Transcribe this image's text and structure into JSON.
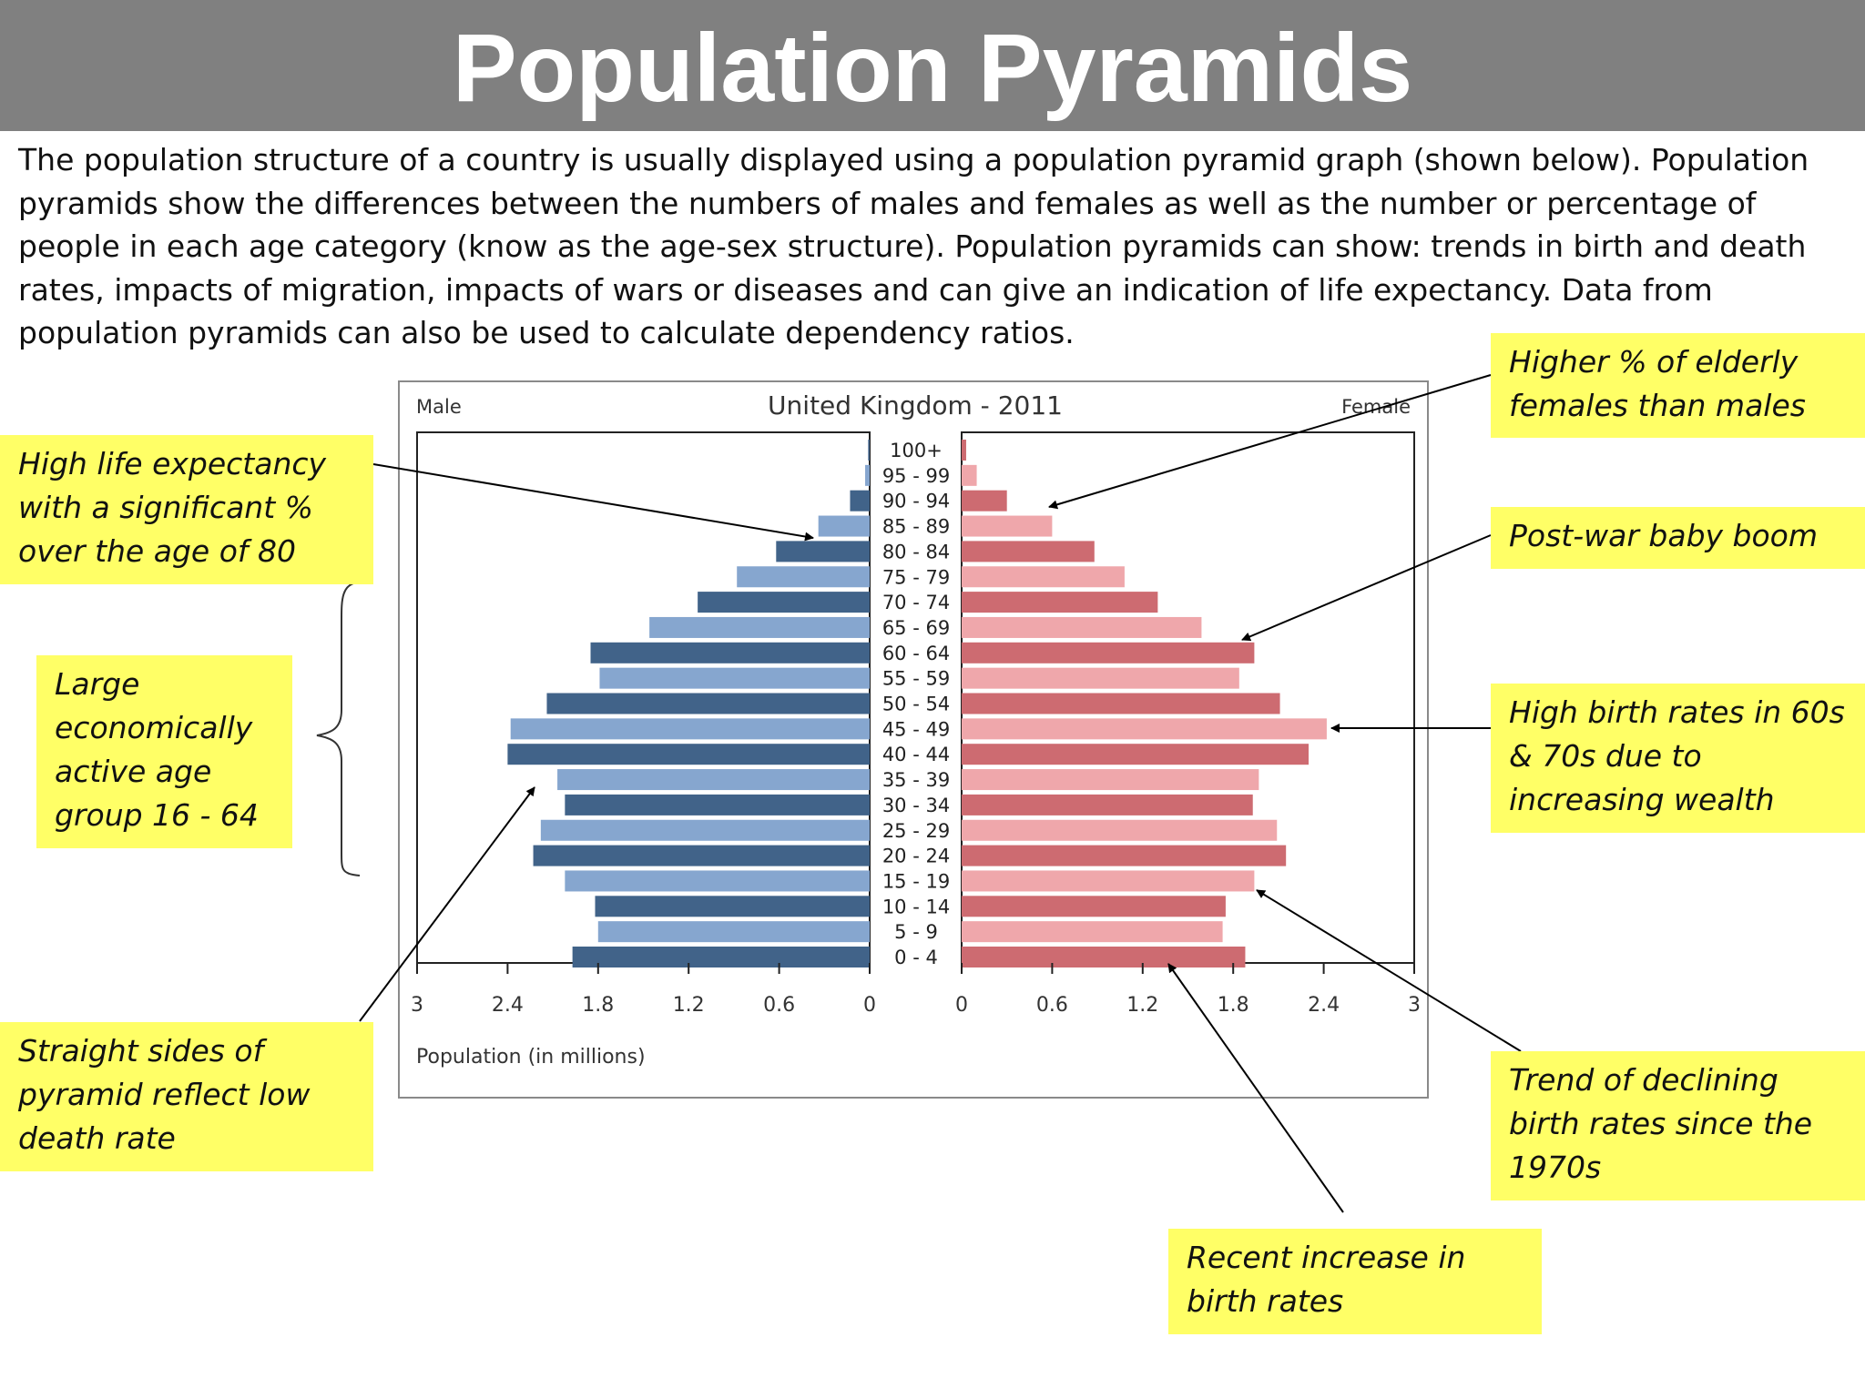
{
  "header": {
    "title": "Population Pyramids"
  },
  "intro": {
    "lines": [
      "The population structure of a country is usually displayed using a population pyramid graph (shown below). Population",
      "pyramids show the differences between the numbers of males and females as well as the number or percentage of",
      "people in each age category (know as the age-sex structure). Population pyramids can show: trends in birth and death",
      "rates, impacts of migration, impacts of wars or diseases and can give an indication of life expectancy. Data from",
      "population pyramids can also be used to calculate dependency ratios."
    ]
  },
  "annotations": {
    "high_life_expectancy": [
      "High life expectancy",
      "with a significant %",
      "over the age of 80"
    ],
    "economically_active": [
      "Large",
      "economically",
      "active age",
      "group 16 - 64"
    ],
    "straight_sides": [
      "Straight sides of",
      "pyramid reflect low",
      "death rate"
    ],
    "elderly_females": [
      "Higher % of elderly",
      "females than males"
    ],
    "baby_boom": [
      "Post-war baby boom"
    ],
    "high_birth_rates": [
      "High birth rates in 60s",
      "& 70s due to",
      "increasing wealth"
    ],
    "declining_birth_rates": [
      "Trend of declining",
      "birth rates since the",
      "1970s"
    ],
    "recent_increase": [
      "Recent increase in",
      "birth rates"
    ]
  },
  "chart_data": {
    "type": "bar",
    "title": "United Kingdom - 2011",
    "left_label": "Male",
    "right_label": "Female",
    "xlabel": "Population (in millions)",
    "xlim": [
      0,
      3
    ],
    "x_ticks": [
      "3",
      "2.4",
      "1.8",
      "1.2",
      "0.6",
      "0"
    ],
    "x_ticks_right": [
      "0",
      "0.6",
      "1.2",
      "1.8",
      "2.4",
      "3"
    ],
    "categories": [
      "100+",
      "95 - 99",
      "90 - 94",
      "85 - 89",
      "80 - 84",
      "75 - 79",
      "70 - 74",
      "65 - 69",
      "60 - 64",
      "55 - 59",
      "50 - 54",
      "45 - 49",
      "40 - 44",
      "35 - 39",
      "30 - 34",
      "25 - 29",
      "20 - 24",
      "15 - 19",
      "10 - 14",
      "5 - 9",
      "0 - 4"
    ],
    "series": [
      {
        "name": "Male",
        "values": [
          0.01,
          0.03,
          0.13,
          0.34,
          0.62,
          0.88,
          1.14,
          1.46,
          1.85,
          1.79,
          2.14,
          2.38,
          2.4,
          2.07,
          2.02,
          2.18,
          2.23,
          2.02,
          1.82,
          1.8,
          1.97
        ]
      },
      {
        "name": "Female",
        "values": [
          0.03,
          0.1,
          0.3,
          0.6,
          0.88,
          1.08,
          1.3,
          1.59,
          1.94,
          1.84,
          2.11,
          2.42,
          2.3,
          1.97,
          1.93,
          2.09,
          2.15,
          1.94,
          1.75,
          1.73,
          1.88
        ]
      }
    ],
    "colors": {
      "male_light": "#86a6cf",
      "male_dark": "#416389",
      "female_light": "#efa7ab",
      "female_dark": "#cd6b71"
    }
  }
}
